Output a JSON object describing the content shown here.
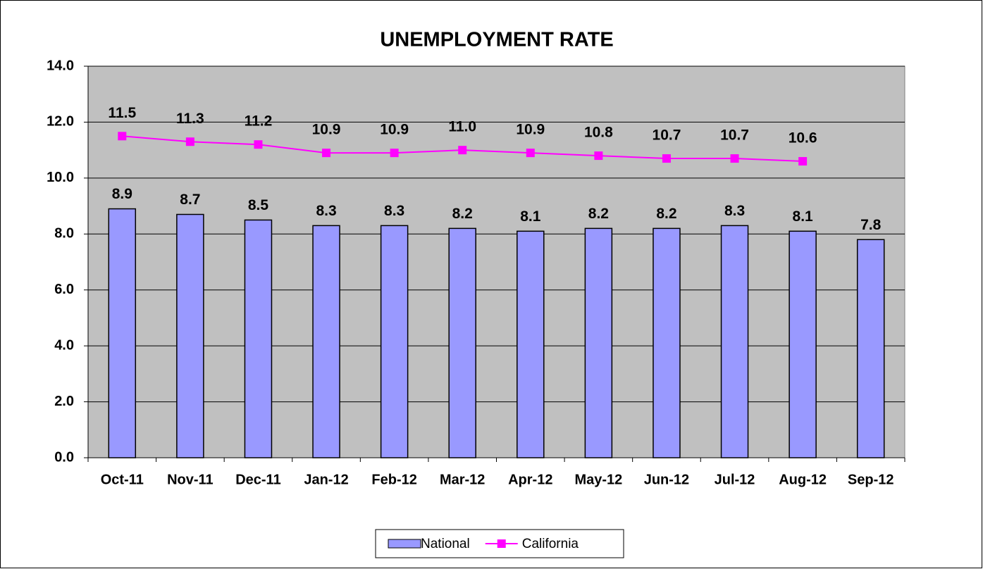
{
  "chart_data": {
    "type": "bar",
    "title": "UNEMPLOYMENT RATE",
    "categories": [
      "Oct-11",
      "Nov-11",
      "Dec-11",
      "Jan-12",
      "Feb-12",
      "Mar-12",
      "Apr-12",
      "May-12",
      "Jun-12",
      "Jul-12",
      "Aug-12",
      "Sep-12"
    ],
    "series": [
      {
        "name": "National",
        "type": "bar",
        "color": "#9999ff",
        "values": [
          8.9,
          8.7,
          8.5,
          8.3,
          8.3,
          8.2,
          8.1,
          8.2,
          8.2,
          8.3,
          8.1,
          7.8
        ]
      },
      {
        "name": "California",
        "type": "line",
        "color": "#ff00ff",
        "values": [
          11.5,
          11.3,
          11.2,
          10.9,
          10.9,
          11,
          10.9,
          10.8,
          10.7,
          10.7,
          10.6,
          null
        ],
        "value_labels": [
          "11.5",
          "11.3",
          "11.2",
          "10.9",
          "10.9",
          "11.0",
          "10.9",
          "10.8",
          "10.7",
          "10.7",
          "10.6",
          null
        ]
      }
    ],
    "ylim": [
      0,
      14
    ],
    "yticks": [
      {
        "value": 0,
        "label": "0.0"
      },
      {
        "value": 2,
        "label": "2.0"
      },
      {
        "value": 4,
        "label": "4.0"
      },
      {
        "value": 6,
        "label": "6.0"
      },
      {
        "value": 8,
        "label": "8.0"
      },
      {
        "value": 10,
        "label": "10.0"
      },
      {
        "value": 12,
        "label": "12.0"
      },
      {
        "value": 14,
        "label": "14.0"
      }
    ],
    "grid": true,
    "legend": "bottom"
  }
}
